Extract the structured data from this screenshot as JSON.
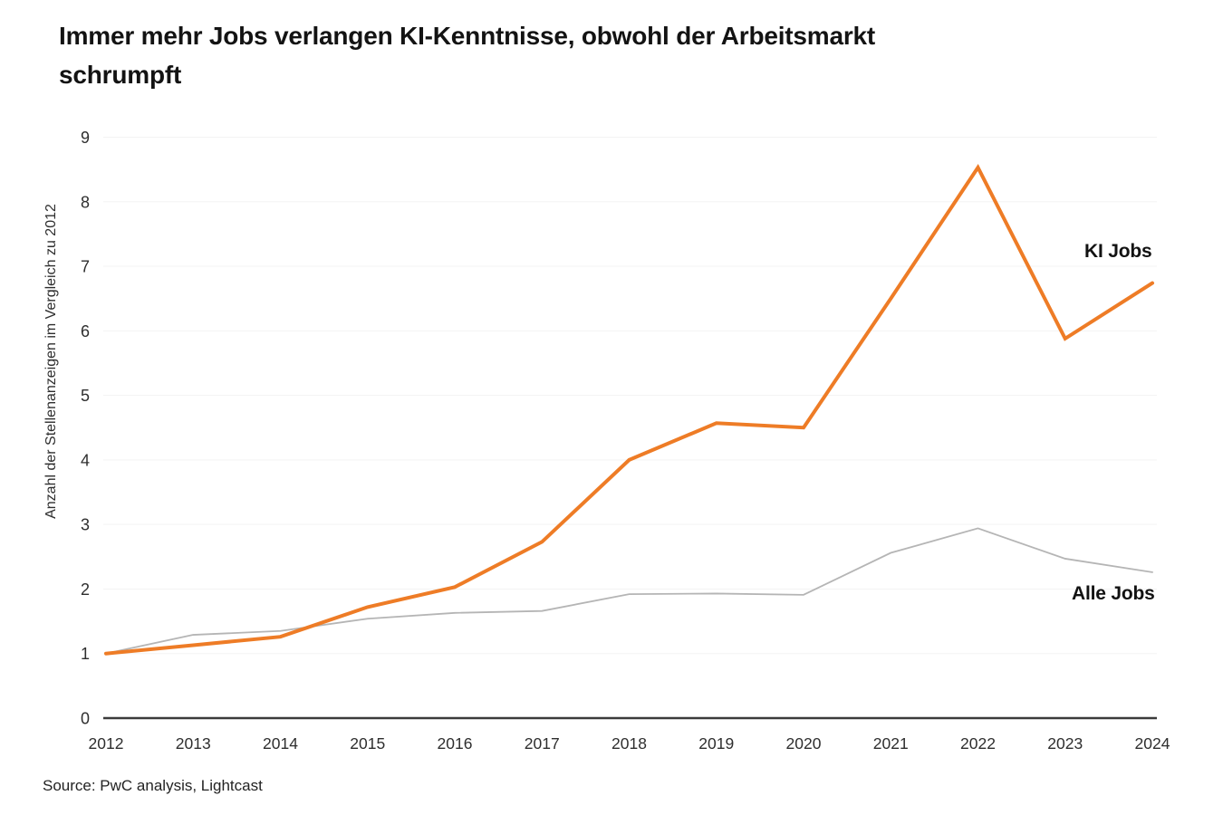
{
  "title": {
    "line1": "Immer mehr Jobs verlangen KI-Kenntnisse, obwohl der Arbeitsmarkt",
    "line2": "schrumpft"
  },
  "source": "Source: PwC analysis, Lightcast",
  "colors": {
    "ki_jobs": "#EE7C26",
    "alle_jobs": "#B5B5B5",
    "axis": "#3B3B3B",
    "grid": "#F3F3F3",
    "tick_text": "#2E2E2E",
    "title_text": "#131313",
    "label_text": "#121212"
  },
  "chart_data": {
    "type": "line",
    "title": "Immer mehr Jobs verlangen KI-Kenntnisse, obwohl der Arbeitsmarkt schrumpft",
    "xlabel": "",
    "ylabel": "Anzahl der Stellenanzeigen im Vergleich zu 2012",
    "x": [
      2012,
      2013,
      2014,
      2015,
      2016,
      2017,
      2018,
      2019,
      2020,
      2021,
      2022,
      2023,
      2024
    ],
    "ylim": [
      0,
      9
    ],
    "yticks": [
      0,
      1,
      2,
      3,
      4,
      5,
      6,
      7,
      8,
      9
    ],
    "grid": "horizontal-light",
    "legend_position": "end-of-line-labels",
    "series": [
      {
        "name": "KI Jobs",
        "color": "#EE7C26",
        "values": [
          1.0,
          1.13,
          1.26,
          1.72,
          2.03,
          2.73,
          4.0,
          4.57,
          4.5,
          6.5,
          8.53,
          5.88,
          6.74
        ]
      },
      {
        "name": "Alle Jobs",
        "color": "#B5B5B5",
        "values": [
          1.0,
          1.29,
          1.35,
          1.54,
          1.63,
          1.66,
          1.92,
          1.93,
          1.91,
          2.56,
          2.94,
          2.47,
          2.26
        ]
      }
    ],
    "source": "Source: PwC analysis, Lightcast"
  }
}
